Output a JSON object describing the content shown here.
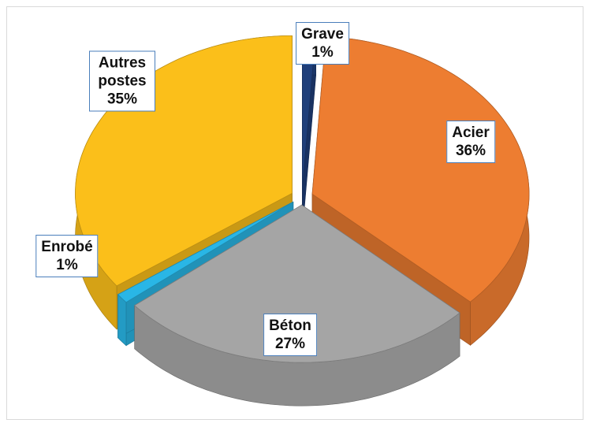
{
  "chart_data": {
    "type": "pie",
    "categories": [
      "Grave",
      "Acier",
      "Béton",
      "Enrobé",
      "Autres postes"
    ],
    "values": [
      1,
      36,
      27,
      1,
      35
    ],
    "value_labels": [
      "1%",
      "36%",
      "27%",
      "1%",
      "35%"
    ],
    "colors": [
      "#1f3f7a",
      "#ed7d31",
      "#a5a5a5",
      "#29b6e6",
      "#fbbf1a"
    ]
  }
}
